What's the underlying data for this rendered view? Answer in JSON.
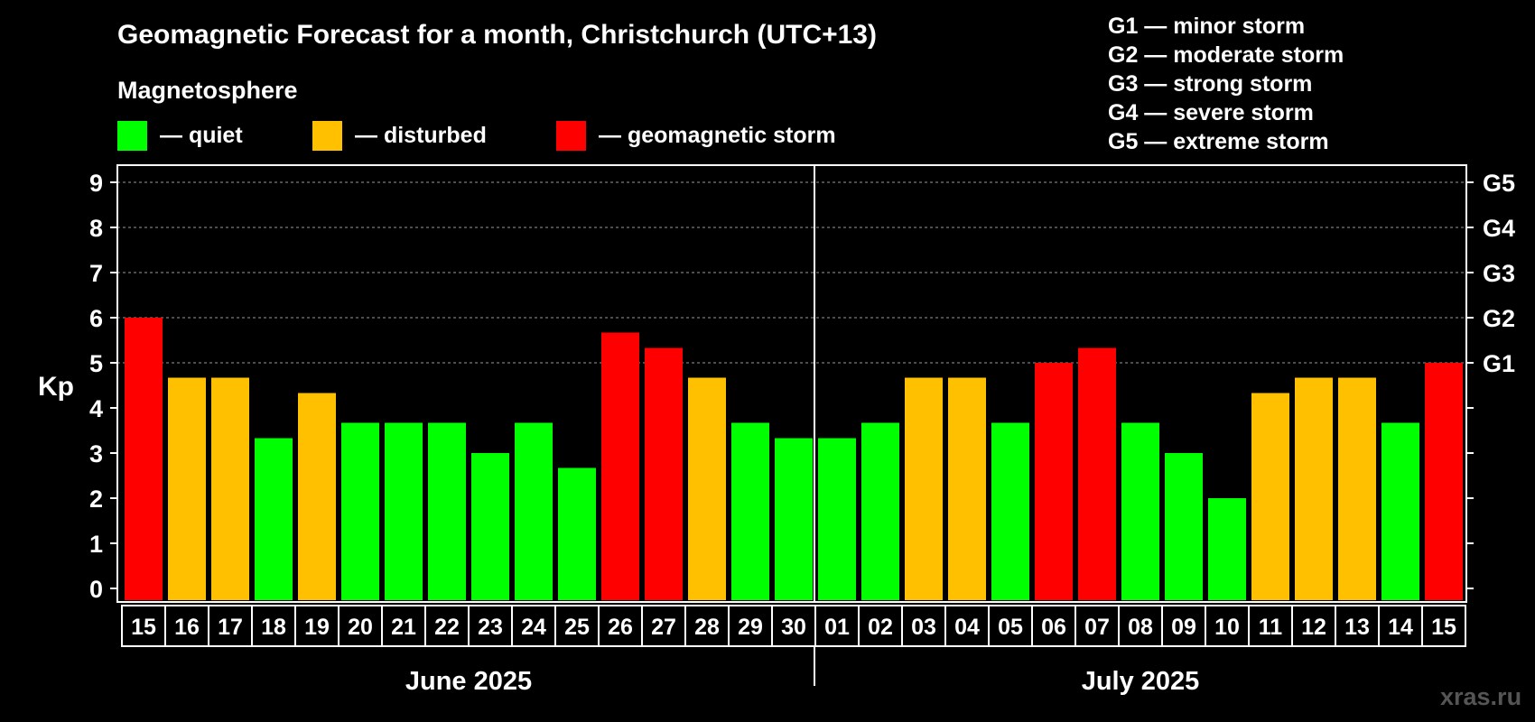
{
  "chart_data": {
    "type": "bar",
    "title": "Geomagnetic Forecast for a month, Christchurch (UTC+13)",
    "ylabel": "Kp",
    "ylim": [
      0,
      9
    ],
    "yticks": [
      "0",
      "1",
      "2",
      "3",
      "4",
      "5",
      "6",
      "7",
      "8",
      "9"
    ],
    "g_scale": [
      {
        "label": "G1",
        "kp": 5
      },
      {
        "label": "G2",
        "kp": 6
      },
      {
        "label": "G3",
        "kp": 7
      },
      {
        "label": "G4",
        "kp": 8
      },
      {
        "label": "G5",
        "kp": 9
      }
    ],
    "categories": [
      "15",
      "16",
      "17",
      "18",
      "19",
      "20",
      "21",
      "22",
      "23",
      "24",
      "25",
      "26",
      "27",
      "28",
      "29",
      "30",
      "01",
      "02",
      "03",
      "04",
      "05",
      "06",
      "07",
      "08",
      "09",
      "10",
      "11",
      "12",
      "13",
      "14",
      "15"
    ],
    "values": [
      6.0,
      4.67,
      4.67,
      3.33,
      4.33,
      3.67,
      3.67,
      3.67,
      3.0,
      3.67,
      2.67,
      5.67,
      5.33,
      4.67,
      3.67,
      3.33,
      3.33,
      3.67,
      4.67,
      4.67,
      3.67,
      5.0,
      5.33,
      3.67,
      3.0,
      2.0,
      4.33,
      4.67,
      4.67,
      3.67,
      5.0
    ],
    "levels": [
      "storm",
      "disturbed",
      "disturbed",
      "quiet",
      "disturbed",
      "quiet",
      "quiet",
      "quiet",
      "quiet",
      "quiet",
      "quiet",
      "storm",
      "storm",
      "disturbed",
      "quiet",
      "quiet",
      "quiet",
      "quiet",
      "disturbed",
      "disturbed",
      "quiet",
      "storm",
      "storm",
      "quiet",
      "quiet",
      "quiet",
      "disturbed",
      "disturbed",
      "disturbed",
      "quiet",
      "storm"
    ],
    "months": [
      {
        "label": "June 2025",
        "start": 0,
        "end": 15
      },
      {
        "label": "July 2025",
        "start": 16,
        "end": 30
      }
    ],
    "colors": {
      "quiet": "#00ff00",
      "disturbed": "#ffc000",
      "storm": "#ff0000"
    }
  },
  "legend": {
    "heading": "Magnetosphere",
    "items": [
      {
        "key": "quiet",
        "label": "— quiet"
      },
      {
        "key": "disturbed",
        "label": "— disturbed"
      },
      {
        "key": "storm",
        "label": "— geomagnetic storm"
      }
    ]
  },
  "storm_legend": [
    "G1 — minor storm",
    "G2 — moderate storm",
    "G3 — strong storm",
    "G4 — severe storm",
    "G5 — extreme storm"
  ],
  "watermark": "xras.ru"
}
